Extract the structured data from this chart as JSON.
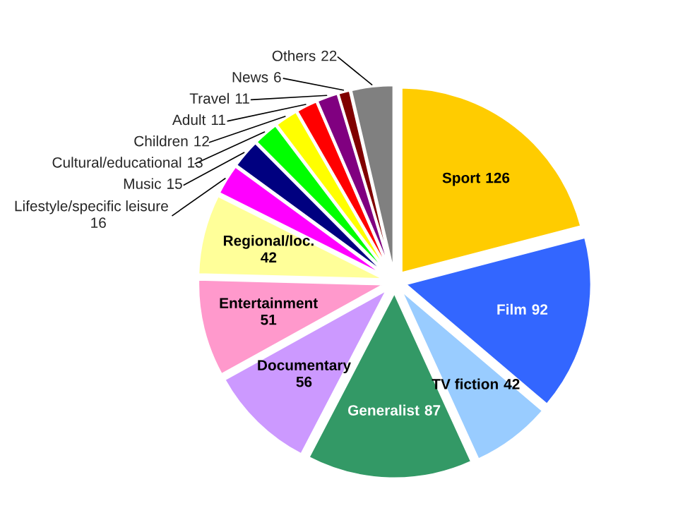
{
  "chart_data": {
    "type": "pie",
    "categories": [
      "Sport",
      "Film",
      "TV fiction",
      "Generalist",
      "Documentary",
      "Entertainment",
      "Regional/loc.",
      "Lifestyle/specific leisure",
      "Music",
      "Cultural/educational",
      "Children",
      "Adult",
      "Travel",
      "News",
      "Others"
    ],
    "values": [
      126,
      92,
      42,
      87,
      56,
      51,
      42,
      16,
      15,
      13,
      12,
      11,
      11,
      6,
      22
    ],
    "colors": [
      "#ffcc00",
      "#3366ff",
      "#99ccff",
      "#339966",
      "#cc99ff",
      "#ff99cc",
      "#ffff99",
      "#ff00ff",
      "#000080",
      "#00ff00",
      "#ffff00",
      "#ff0000",
      "#800080",
      "#800000",
      "#808080"
    ],
    "data_labels": true
  }
}
